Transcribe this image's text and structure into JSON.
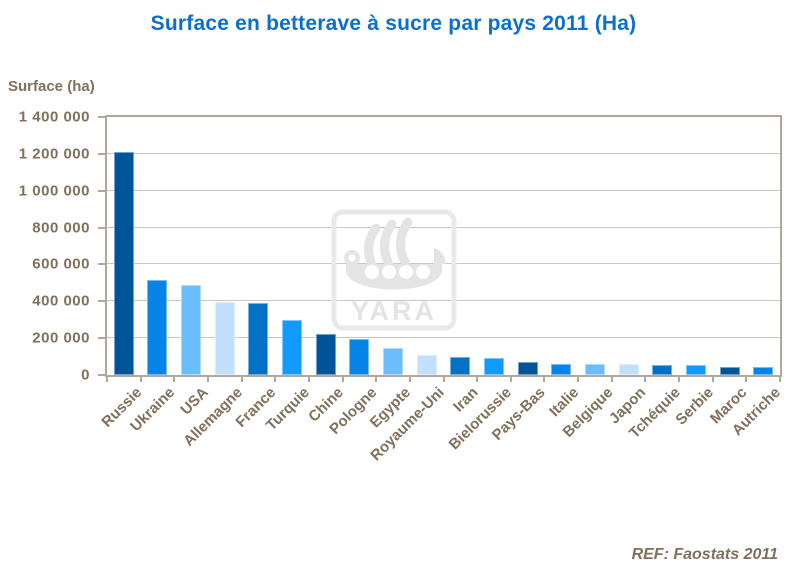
{
  "title": "Surface en betterave à sucre par pays 2011 (Ha)",
  "y_axis_title": "Surface (ha)",
  "footer_ref": "REF: Faostats 2011",
  "watermark": {
    "text": "YARA",
    "color": "#E6E6E6"
  },
  "colors": {
    "title_blue": "#0C70C8",
    "axis_text_brown": "#80705C",
    "axis_line": "#B2A79A",
    "gridline": "#CFC6BA",
    "bar_palette_cycle": [
      "#00549A",
      "#0784E8",
      "#6CBDFE",
      "#C2E0FE",
      "#0471C4",
      "#129BFF"
    ]
  },
  "chart_data": {
    "type": "bar",
    "title": "Surface en betterave à sucre par pays 2011 (Ha)",
    "xlabel": "",
    "ylabel": "Surface (ha)",
    "ylim": [
      0,
      1400000
    ],
    "ytick_values": [
      0,
      200000,
      400000,
      600000,
      800000,
      1000000,
      1200000,
      1400000
    ],
    "ytick_labels": [
      "0",
      "200 000",
      "400 000",
      "600 000",
      "800 000",
      "1 000 000",
      "1 200 000",
      "1 400 000"
    ],
    "grid": true,
    "legend": false,
    "categories": [
      "Russie",
      "Ukraine",
      "USA",
      "Allemagne",
      "France",
      "Turquie",
      "Chine",
      "Pologne",
      "Egypte",
      "Royaume-Uni",
      "Iran",
      "Bielorussie",
      "Pays-Bas",
      "Italie",
      "Belgique",
      "Japon",
      "Tchéquie",
      "Serbie",
      "Maroc",
      "Autriche"
    ],
    "values": [
      1212000,
      513000,
      486000,
      394000,
      390000,
      296000,
      221000,
      198000,
      148000,
      107000,
      96000,
      91000,
      70000,
      60000,
      59000,
      58000,
      56000,
      53000,
      43000,
      46000
    ]
  }
}
